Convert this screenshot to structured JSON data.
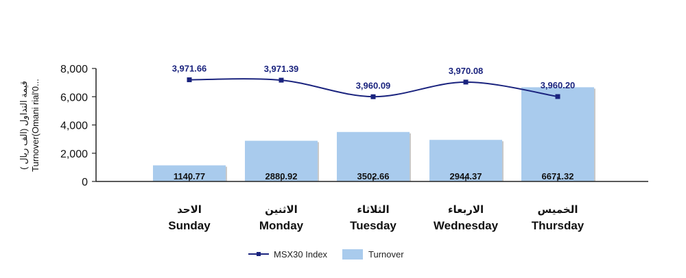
{
  "chart_data": {
    "type": "bar+line",
    "categories": [
      {
        "ar": "الاحد",
        "en": "Sunday"
      },
      {
        "ar": "الاثنين",
        "en": "Monday"
      },
      {
        "ar": "الثلاثاء",
        "en": "Tuesday"
      },
      {
        "ar": "الاربعاء",
        "en": "Wednesday"
      },
      {
        "ar": "الخميس",
        "en": "Thursday"
      }
    ],
    "series": [
      {
        "name": "Turnover",
        "kind": "bar",
        "color": "#a9cbed",
        "values": [
          1140.77,
          2880.92,
          3502.66,
          2944.37,
          6671.32
        ],
        "labels": [
          "1140.77",
          "2880.92",
          "3502.66",
          "2944.37",
          "6671.32"
        ]
      },
      {
        "name": "MSX30 Index",
        "kind": "line",
        "color": "#1a237e",
        "values": [
          3971.66,
          3971.39,
          3960.09,
          3970.08,
          3960.2
        ],
        "labels": [
          "3,971.66",
          "3,971.39",
          "3,960.09",
          "3,970.08",
          "3,960.20"
        ]
      }
    ],
    "ylabel_lines": [
      "( قيمة التداول (الف ريال",
      "Turnover(Omani rial'0..."
    ],
    "y_ticks": [
      "8,000",
      "6,000",
      "4,000",
      "2,000",
      "0"
    ],
    "y_tick_values": [
      8000,
      6000,
      4000,
      2000,
      0
    ],
    "ylim": [
      0,
      8000
    ],
    "line_axis_range": [
      3960.09,
      3971.66
    ],
    "line_axis_map": [
      6000,
      7200
    ],
    "legend_position": "bottom-center",
    "grid": false
  }
}
